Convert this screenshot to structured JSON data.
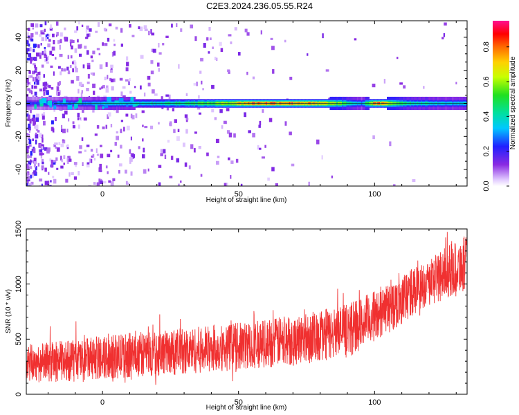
{
  "title": "C2E3.2024.236.05.55.R24",
  "colors": {
    "snr_line": "#f03030",
    "spectrum_line": "#004040",
    "frame": "#000000"
  },
  "chart_data": [
    {
      "type": "heatmap",
      "name": "spectrogram",
      "xlabel": "Height of straight line (km)",
      "ylabel": "Frequency (Hz)",
      "xlim": [
        -28,
        134
      ],
      "ylim": [
        -50,
        50
      ],
      "xticks": [
        0,
        50,
        100
      ],
      "yticks": [
        -40,
        -20,
        0,
        20,
        40
      ],
      "colormap": "rainbow (white-purple-blue-cyan-green-yellow-orange-red-magenta)",
      "colorbar": {
        "label": "Normalized spectral amplitude",
        "range": [
          0,
          0.95
        ],
        "ticks": [
          0.0,
          0.2,
          0.4,
          0.6,
          0.8
        ]
      },
      "dominant_frequency_hz": 0,
      "ridge_amplitude_profile": [
        {
          "x": -25,
          "amp": 0.25
        },
        {
          "x": -15,
          "amp": 0.3
        },
        {
          "x": 0,
          "amp": 0.4
        },
        {
          "x": 20,
          "amp": 0.45
        },
        {
          "x": 40,
          "amp": 0.6
        },
        {
          "x": 55,
          "amp": 0.9
        },
        {
          "x": 70,
          "amp": 0.9
        },
        {
          "x": 85,
          "amp": 0.7
        },
        {
          "x": 95,
          "amp": 0.35
        },
        {
          "x": 100,
          "amp": 0.9
        },
        {
          "x": 112,
          "amp": 0.5
        },
        {
          "x": 125,
          "amp": 0.4
        }
      ]
    },
    {
      "type": "line",
      "name": "snr",
      "xlabel": "Height of straight line (km)",
      "ylabel": "SNR (10 * v/v)",
      "xlim": [
        -28,
        134
      ],
      "ylim": [
        0,
        1500
      ],
      "xticks": [
        0,
        50,
        100
      ],
      "yticks": [
        0,
        500,
        1000,
        1500
      ],
      "envelope": [
        {
          "x": -28,
          "low": 100,
          "high": 450
        },
        {
          "x": -10,
          "low": 120,
          "high": 500
        },
        {
          "x": 10,
          "low": 150,
          "high": 560
        },
        {
          "x": 30,
          "low": 180,
          "high": 600
        },
        {
          "x": 50,
          "low": 220,
          "high": 650
        },
        {
          "x": 70,
          "low": 260,
          "high": 720
        },
        {
          "x": 90,
          "low": 330,
          "high": 820
        },
        {
          "x": 105,
          "low": 550,
          "high": 1000
        },
        {
          "x": 120,
          "low": 800,
          "high": 1250
        },
        {
          "x": 134,
          "low": 950,
          "high": 1450
        }
      ]
    }
  ]
}
